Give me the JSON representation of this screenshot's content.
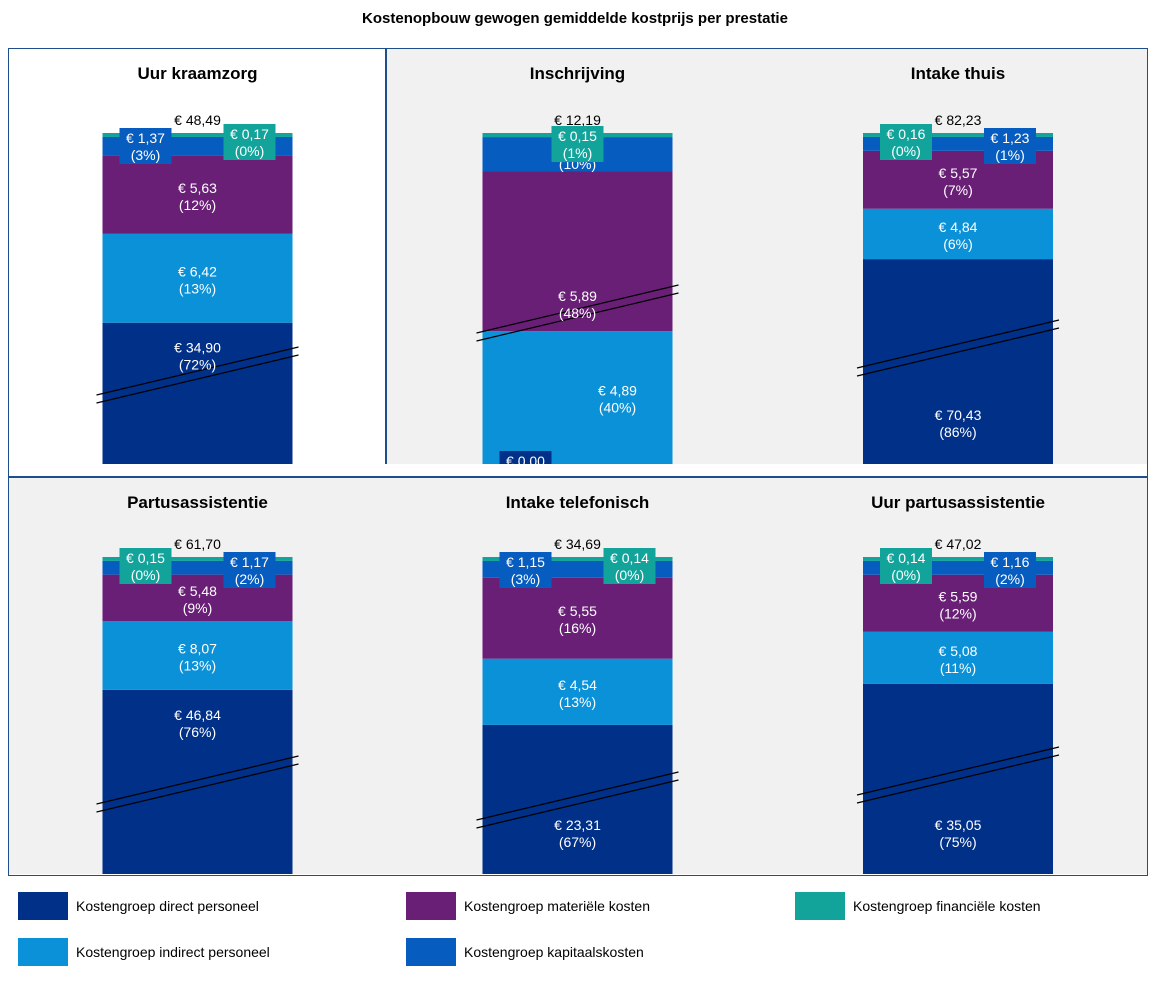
{
  "title": "Kostenopbouw gewogen gemiddelde kostprijs per prestatie",
  "colors": {
    "direct": "#003087",
    "indirect": "#0a91d8",
    "materieel": "#6a1f77",
    "kapitaal": "#075cbf",
    "financieel": "#12a49b",
    "panel_bg_plain": "#ffffff",
    "panel_bg_shaded": "#f1f1f1",
    "frame": "#1f4e8c"
  },
  "legend": [
    {
      "key": "direct",
      "label": "Kostengroep direct personeel"
    },
    {
      "key": "materieel",
      "label": "Kostengroep materiële kosten"
    },
    {
      "key": "financieel",
      "label": "Kostengroep financiële kosten"
    },
    {
      "key": "indirect",
      "label": "Kostengroep indirect personeel"
    },
    {
      "key": "kapitaal",
      "label": "Kostengroep kapitaalskosten"
    }
  ],
  "chart_data": [
    {
      "type": "bar",
      "title": "Uur kraamzorg",
      "total_label": "€ 48,49",
      "axis_break": true,
      "segments": [
        {
          "key": "direct",
          "value": 34.9,
          "value_label": "€ 34,90",
          "pct_label": "(72%)"
        },
        {
          "key": "indirect",
          "value": 6.42,
          "value_label": "€ 6,42",
          "pct_label": "(13%)"
        },
        {
          "key": "materieel",
          "value": 5.63,
          "value_label": "€ 5,63",
          "pct_label": "(12%)"
        },
        {
          "key": "kapitaal",
          "value": 1.37,
          "value_label": "€ 1,37",
          "pct_label": "(3%)"
        },
        {
          "key": "financieel",
          "value": 0.17,
          "value_label": "€ 0,17",
          "pct_label": "(0%)"
        }
      ]
    },
    {
      "type": "bar",
      "title": "Inschrijving",
      "total_label": "€ 12,19",
      "axis_break": true,
      "segments": [
        {
          "key": "direct",
          "value": 0.0,
          "value_label": "€ 0,00",
          "pct_label": "(0%)"
        },
        {
          "key": "indirect",
          "value": 4.89,
          "value_label": "€ 4,89",
          "pct_label": "(40%)"
        },
        {
          "key": "materieel",
          "value": 5.89,
          "value_label": "€ 5,89",
          "pct_label": "(48%)"
        },
        {
          "key": "kapitaal",
          "value": 1.25,
          "value_label": "€ 1,25",
          "pct_label": "(10%)"
        },
        {
          "key": "financieel",
          "value": 0.15,
          "value_label": "€ 0,15",
          "pct_label": "(1%)"
        }
      ]
    },
    {
      "type": "bar",
      "title": "Intake thuis",
      "total_label": "€ 82,23",
      "axis_break": true,
      "segments": [
        {
          "key": "direct",
          "value": 70.43,
          "value_label": "€ 70,43",
          "pct_label": "(86%)"
        },
        {
          "key": "indirect",
          "value": 4.84,
          "value_label": "€ 4,84",
          "pct_label": "(6%)"
        },
        {
          "key": "materieel",
          "value": 5.57,
          "value_label": "€ 5,57",
          "pct_label": "(7%)"
        },
        {
          "key": "kapitaal",
          "value": 1.23,
          "value_label": "€ 1,23",
          "pct_label": "(1%)"
        },
        {
          "key": "financieel",
          "value": 0.16,
          "value_label": "€ 0,16",
          "pct_label": "(0%)"
        }
      ]
    },
    {
      "type": "bar",
      "title": "Partusassistentie",
      "total_label": "€ 61,70",
      "axis_break": true,
      "segments": [
        {
          "key": "direct",
          "value": 46.84,
          "value_label": "€ 46,84",
          "pct_label": "(76%)"
        },
        {
          "key": "indirect",
          "value": 8.07,
          "value_label": "€ 8,07",
          "pct_label": "(13%)"
        },
        {
          "key": "materieel",
          "value": 5.48,
          "value_label": "€ 5,48",
          "pct_label": "(9%)"
        },
        {
          "key": "kapitaal",
          "value": 1.17,
          "value_label": "€ 1,17",
          "pct_label": "(2%)"
        },
        {
          "key": "financieel",
          "value": 0.15,
          "value_label": "€ 0,15",
          "pct_label": "(0%)"
        }
      ]
    },
    {
      "type": "bar",
      "title": "Intake telefonisch",
      "total_label": "€ 34,69",
      "axis_break": true,
      "segments": [
        {
          "key": "direct",
          "value": 23.31,
          "value_label": "€ 23,31",
          "pct_label": "(67%)"
        },
        {
          "key": "indirect",
          "value": 4.54,
          "value_label": "€ 4,54",
          "pct_label": "(13%)"
        },
        {
          "key": "materieel",
          "value": 5.55,
          "value_label": "€ 5,55",
          "pct_label": "(16%)"
        },
        {
          "key": "kapitaal",
          "value": 1.15,
          "value_label": "€ 1,15",
          "pct_label": "(3%)"
        },
        {
          "key": "financieel",
          "value": 0.14,
          "value_label": "€ 0,14",
          "pct_label": "(0%)"
        }
      ]
    },
    {
      "type": "bar",
      "title": "Uur partusassistentie",
      "total_label": "€ 47,02",
      "axis_break": true,
      "segments": [
        {
          "key": "direct",
          "value": 35.05,
          "value_label": "€ 35,05",
          "pct_label": "(75%)"
        },
        {
          "key": "indirect",
          "value": 5.08,
          "value_label": "€ 5,08",
          "pct_label": "(11%)"
        },
        {
          "key": "materieel",
          "value": 5.59,
          "value_label": "€ 5,59",
          "pct_label": "(12%)"
        },
        {
          "key": "kapitaal",
          "value": 1.16,
          "value_label": "€ 1,16",
          "pct_label": "(2%)"
        },
        {
          "key": "financieel",
          "value": 0.14,
          "value_label": "€ 0,14",
          "pct_label": "(0%)"
        }
      ]
    }
  ]
}
